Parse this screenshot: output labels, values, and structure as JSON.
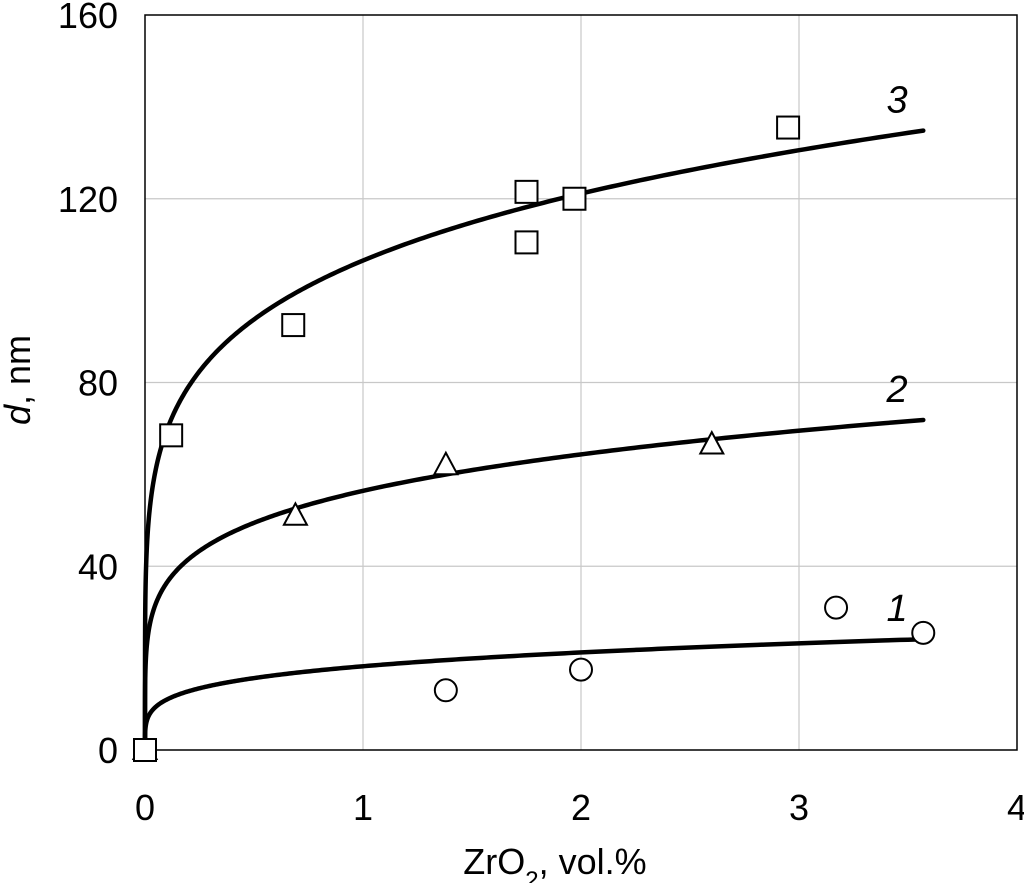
{
  "chart_data": {
    "type": "scatter",
    "title": "",
    "xlabel": {
      "main": "ZrO",
      "sub": "2",
      "rest": ", vol.%"
    },
    "ylabel": {
      "var": "d",
      "rest": ",  nm"
    },
    "xlim": [
      0,
      4
    ],
    "ylim": [
      0,
      160
    ],
    "xticks": [
      0,
      1,
      2,
      3,
      4
    ],
    "yticks": [
      0,
      40,
      80,
      120,
      160
    ],
    "xtick_labels": [
      "0",
      "1",
      "2",
      "3",
      "4"
    ],
    "ytick_labels": [
      "0",
      "40",
      "80",
      "120",
      "160"
    ],
    "grid": true,
    "series": [
      {
        "label": "1",
        "marker": "circle",
        "points": [
          [
            0,
            0
          ],
          [
            1.38,
            13
          ],
          [
            2.0,
            17.5
          ],
          [
            3.17,
            31
          ],
          [
            3.57,
            25.5
          ]
        ],
        "fit": {
          "type": "power",
          "a": 18.23,
          "b": 0.22
        }
      },
      {
        "label": "2",
        "marker": "triangle",
        "points": [
          [
            0,
            0
          ],
          [
            0.69,
            51
          ],
          [
            1.38,
            62
          ],
          [
            2.6,
            66.5
          ]
        ],
        "fit": {
          "type": "power",
          "a": 56.41,
          "b": 0.19
        }
      },
      {
        "label": "3",
        "marker": "square",
        "points": [
          [
            0,
            0
          ],
          [
            0.12,
            68.5
          ],
          [
            0.68,
            92.5
          ],
          [
            1.75,
            121.5
          ],
          [
            1.75,
            110.5
          ],
          [
            1.97,
            120
          ],
          [
            2.95,
            135.5
          ]
        ],
        "fit": {
          "type": "power",
          "a": 106.55,
          "b": 0.185
        }
      }
    ]
  }
}
